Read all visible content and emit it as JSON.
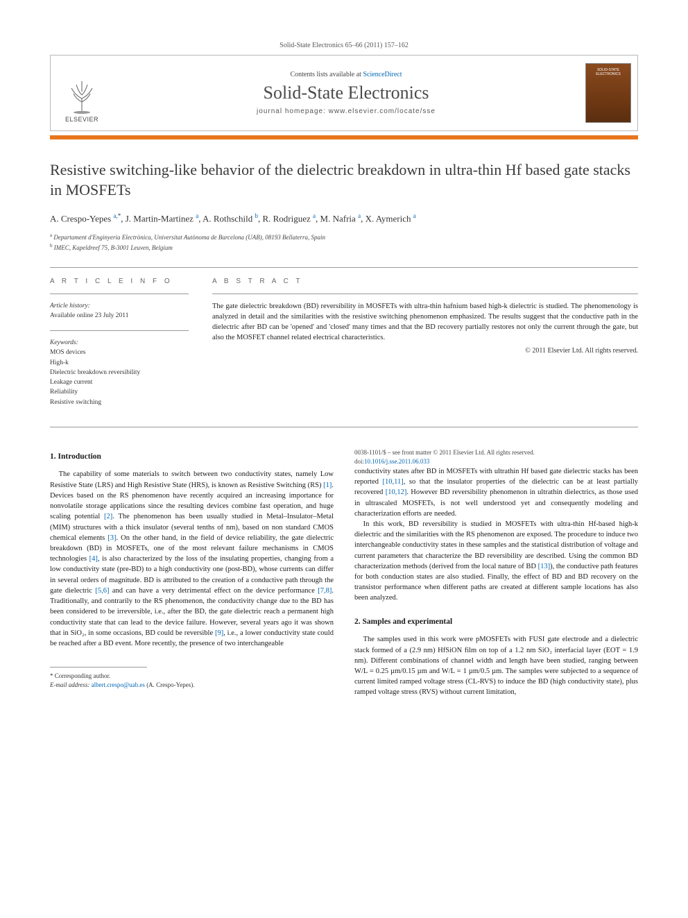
{
  "journal_ref": "Solid-State Electronics 65–66 (2011) 157–162",
  "header": {
    "contents_prefix": "Contents lists available at ",
    "contents_link": "ScienceDirect",
    "journal_title": "Solid-State Electronics",
    "homepage_prefix": "journal homepage: ",
    "homepage_url": "www.elsevier.com/locate/sse",
    "publisher_label": "ELSEVIER",
    "cover_line1": "SOLID-STATE",
    "cover_line2": "ELECTRONICS"
  },
  "colors": {
    "accent_bar": "#e8751d",
    "link": "#0066b3",
    "cover_bg_top": "#8a4a1e",
    "cover_bg_bottom": "#5a2e10",
    "text": "#1a1a1a",
    "border": "#b8b8b8"
  },
  "title": "Resistive switching-like behavior of the dielectric breakdown in ultra-thin Hf based gate stacks in MOSFETs",
  "authors_html": "A. Crespo-Yepes <sup>a,</sup><sup class=\"star\">*</sup>, J. Martin-Martinez <sup>a</sup>, A. Rothschild <sup>b</sup>, R. Rodriguez <sup>a</sup>, M. Nafria <sup>a</sup>, X. Aymerich <sup>a</sup>",
  "authors": [
    {
      "name": "A. Crespo-Yepes",
      "aff": "a",
      "corresponding": true
    },
    {
      "name": "J. Martin-Martinez",
      "aff": "a"
    },
    {
      "name": "A. Rothschild",
      "aff": "b"
    },
    {
      "name": "R. Rodriguez",
      "aff": "a"
    },
    {
      "name": "M. Nafria",
      "aff": "a"
    },
    {
      "name": "X. Aymerich",
      "aff": "a"
    }
  ],
  "affiliations": {
    "a": "Departament d'Enginyeria Electrònica, Universitat Autònoma de Barcelona (UAB), 08193 Bellaterra, Spain",
    "b": "IMEC, Kapeldreef 75, B-3001 Leuven, Belgium"
  },
  "article_info": {
    "label": "A R T I C L E   I N F O",
    "history_label": "Article history:",
    "history_line": "Available online 23 July 2011",
    "keywords_label": "Keywords:",
    "keywords": [
      "MOS devices",
      "High-k",
      "Dielectric breakdown reversibility",
      "Leakage current",
      "Reliability",
      "Resistive switching"
    ]
  },
  "abstract": {
    "label": "A B S T R A C T",
    "text": "The gate dielectric breakdown (BD) reversibility in MOSFETs with ultra-thin hafnium based high-k dielectric is studied. The phenomenology is analyzed in detail and the similarities with the resistive switching phenomenon emphasized. The results suggest that the conductive path in the dielectric after BD can be 'opened' and 'closed' many times and that the BD recovery partially restores not only the current through the gate, but also the MOSFET channel related electrical characteristics.",
    "copyright": "© 2011 Elsevier Ltd. All rights reserved."
  },
  "sections": {
    "s1": {
      "heading": "1. Introduction",
      "p1": "The capability of some materials to switch between two conductivity states, namely Low Resistive State (LRS) and High Resistive State (HRS), is known as Resistive Switching (RS) [1]. Devices based on the RS phenomenon have recently acquired an increasing importance for nonvolatile storage applications since the resulting devices combine fast operation, and huge scaling potential [2]. The phenomenon has been usually studied in Metal–Insulator–Metal (MIM) structures with a thick insulator (several tenths of nm), based on non standard CMOS chemical elements [3]. On the other hand, in the field of device reliability, the gate dielectric breakdown (BD) in MOSFETs, one of the most relevant failure mechanisms in CMOS technologies [4], is also characterized by the loss of the insulating properties, changing from a low conductivity state (pre-BD) to a high conductivity one (post-BD), whose currents can differ in several orders of magnitude. BD is attributed to the creation of a conductive path through the gate dielectric [5,6] and can have a very detrimental effect on the device performance [7,8]. Traditionally, and contrarily to the RS phenomenon, the conductivity change due to the BD has been considered to be irreversible, i.e., after the BD, the gate dielectric reach a permanent high conductivity state that can lead to the device failure. However, several years ago it was shown that in SiO₂, in some occasions, BD could be reversible [9], i.e., a lower conductivity state could be reached after a BD event. More recently, the presence of two interchangeable",
      "p2": "conductivity states after BD in MOSFETs with ultrathin Hf based gate dielectric stacks has been reported [10,11], so that the insulator properties of the dielectric can be at least partially recovered [10,12]. However BD reversibility phenomenon in ultrathin dielectrics, as those used in ultrascaled MOSFETs, is not well understood yet and consequently modeling and characterization efforts are needed.",
      "p3": "In this work, BD reversibility is studied in MOSFETs with ultra-thin Hf-based high-k dielectric and the similarities with the RS phenomenon are exposed. The procedure to induce two interchangeable conductivity states in these samples and the statistical distribution of voltage and current parameters that characterize the BD reversibility are described. Using the common BD characterization methods (derived from the local nature of BD [13]), the conductive path features for both conduction states are also studied. Finally, the effect of BD and BD recovery on the transistor performance when different paths are created at different sample locations has also been analyzed."
    },
    "s2": {
      "heading": "2. Samples and experimental",
      "p1": "The samples used in this work were pMOSFETs with FUSI gate electrode and a dielectric stack formed of a (2.9 nm) HfSiON film on top of a 1.2 nm SiO₂ interfacial layer (EOT = 1.9 nm). Different combinations of channel width and length have been studied, ranging between W/L = 0.25 µm/0.15 µm and W/L = 1 µm/0.5 µm. The samples were subjected to a sequence of current limited ramped voltage stress (CL-RVS) to induce the BD (high conductivity state), plus ramped voltage stress (RVS) without current limitation,"
    }
  },
  "footnote": {
    "corr_label": "* Corresponding author.",
    "email_label": "E-mail address:",
    "email": "albert.crespo@uab.es",
    "email_suffix": "(A. Crespo-Yepes)."
  },
  "pub_footer": {
    "left_line1": "0038-1101/$ – see front matter © 2011 Elsevier Ltd. All rights reserved.",
    "left_line2_prefix": "doi:",
    "doi": "10.1016/j.sse.2011.06.033"
  }
}
